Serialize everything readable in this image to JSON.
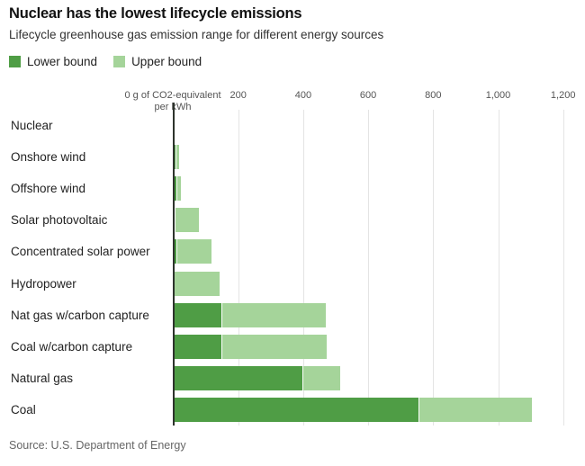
{
  "header": {
    "title": "Nuclear has the lowest lifecycle emissions",
    "subtitle": "Lifecycle greenhouse gas emission range for different energy sources"
  },
  "legend": {
    "items": [
      {
        "label": "Lower bound",
        "color": "#4f9d45"
      },
      {
        "label": "Upper bound",
        "color": "#a5d49a"
      }
    ]
  },
  "source": "Source: U.S. Department of Energy",
  "chart_data": {
    "type": "bar",
    "orientation": "horizontal",
    "title": "Nuclear has the lowest lifecycle emissions",
    "subtitle": "Lifecycle greenhouse gas emission range for different energy sources",
    "unit_label_lines": [
      "0 g of CO2-equivalent",
      "per kWh"
    ],
    "categories": [
      "Nuclear",
      "Onshore wind",
      "Offshore wind",
      "Solar photovoltaic",
      "Concentrated solar power",
      "Hydropower",
      "Nat gas w/carbon capture",
      "Coal w/carbon capture",
      "Natural gas",
      "Coal"
    ],
    "series": [
      {
        "name": "Lower bound",
        "color": "#4f9d45",
        "values": [
          2,
          8,
          10,
          6,
          12,
          4,
          150,
          150,
          400,
          755
        ]
      },
      {
        "name": "Upper bound",
        "color": "#a5d49a",
        "values": [
          5,
          20,
          25,
          80,
          120,
          145,
          470,
          475,
          515,
          1105
        ]
      }
    ],
    "xlim": [
      0,
      1240
    ],
    "xticks": [
      200,
      400,
      600,
      800,
      1000,
      1200
    ],
    "xtick_labels": [
      "200",
      "400",
      "600",
      "800",
      "1,000",
      "1,200"
    ],
    "grid": true,
    "legend_position": "top-left",
    "bar_colors": {
      "lower": "#4f9d45",
      "upper": "#a5d49a"
    }
  }
}
